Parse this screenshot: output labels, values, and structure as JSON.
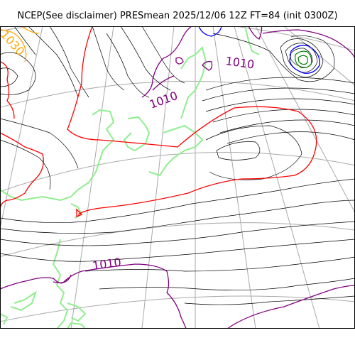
{
  "title": "NCEP(See disclaimer) PRESmean 2025/12/06 12Z FT=84 (init 0300Z)",
  "contour_labels": [
    {
      "id": "label-1030",
      "text": "1030"
    },
    {
      "id": "label-1010-upper-right",
      "text": "1010"
    },
    {
      "id": "label-1010-center",
      "text": "1010"
    },
    {
      "id": "label-1010-lower-left",
      "text": "1010"
    }
  ],
  "colors": {
    "isobar_thin": "#000000",
    "isobar_1010": "#800080",
    "isobar_1020": "#ff0000",
    "isobar_1030": "#ffa500",
    "low_center": "#0000ff",
    "low_core": "#008000",
    "coastline": "#90ee90",
    "graticule": "#a9a9a9"
  }
}
